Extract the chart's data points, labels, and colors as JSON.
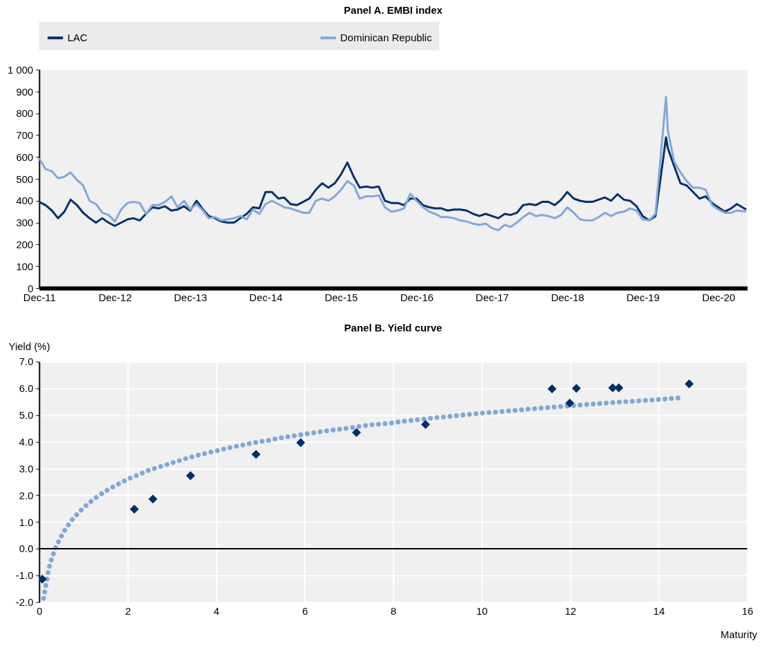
{
  "chart_data": [
    {
      "type": "line",
      "title": "Panel A. EMBI index",
      "legend": "top",
      "x": [
        "2011-12",
        "2012-01",
        "2012-02",
        "2012-03",
        "2012-04",
        "2012-05",
        "2012-06",
        "2012-07",
        "2012-08",
        "2012-09",
        "2012-10",
        "2012-11",
        "2012-12",
        "2013-01",
        "2013-02",
        "2013-03",
        "2013-04",
        "2013-05",
        "2013-06",
        "2013-07",
        "2013-08",
        "2013-09",
        "2013-10",
        "2013-11",
        "2013-12",
        "2014-01",
        "2014-02",
        "2014-03",
        "2014-04",
        "2014-05",
        "2014-06",
        "2014-07",
        "2014-08",
        "2014-09",
        "2014-10",
        "2014-11",
        "2014-12",
        "2015-01",
        "2015-02",
        "2015-03",
        "2015-04",
        "2015-05",
        "2015-06",
        "2015-07",
        "2015-08",
        "2015-09",
        "2015-10",
        "2015-11",
        "2015-12",
        "2016-01",
        "2016-02",
        "2016-03",
        "2016-04",
        "2016-05",
        "2016-06",
        "2016-07",
        "2016-08",
        "2016-09",
        "2016-10",
        "2016-11",
        "2016-12",
        "2017-01",
        "2017-02",
        "2017-03",
        "2017-04",
        "2017-05",
        "2017-06",
        "2017-07",
        "2017-08",
        "2017-09",
        "2017-10",
        "2017-11",
        "2017-12",
        "2018-01",
        "2018-02",
        "2018-03",
        "2018-04",
        "2018-05",
        "2018-06",
        "2018-07",
        "2018-08",
        "2018-09",
        "2018-10",
        "2018-11",
        "2018-12",
        "2019-01",
        "2019-02",
        "2019-03",
        "2019-04",
        "2019-05",
        "2019-06",
        "2019-07",
        "2019-08",
        "2019-09",
        "2019-10",
        "2019-11",
        "2019-12",
        "2020-01",
        "2020-02",
        "2020-03-23",
        "2020-04",
        "2020-05",
        "2020-06",
        "2020-07",
        "2020-08",
        "2020-09",
        "2020-10",
        "2020-11",
        "2020-12",
        "2021-01",
        "2021-02",
        "2021-03",
        "2021-04-15"
      ],
      "series": [
        {
          "name": "LAC",
          "color": "#002f6c",
          "values": [
            395,
            380,
            355,
            320,
            350,
            405,
            380,
            345,
            320,
            300,
            320,
            300,
            285,
            300,
            315,
            320,
            310,
            340,
            370,
            365,
            375,
            355,
            360,
            375,
            355,
            400,
            360,
            330,
            320,
            305,
            300,
            300,
            320,
            340,
            370,
            365,
            440,
            440,
            410,
            415,
            385,
            380,
            395,
            410,
            450,
            480,
            460,
            480,
            520,
            575,
            510,
            460,
            465,
            460,
            465,
            400,
            390,
            390,
            380,
            410,
            410,
            380,
            370,
            365,
            365,
            355,
            360,
            360,
            355,
            340,
            330,
            340,
            330,
            320,
            340,
            335,
            345,
            380,
            385,
            380,
            395,
            395,
            380,
            405,
            440,
            410,
            400,
            395,
            395,
            405,
            415,
            400,
            430,
            405,
            400,
            375,
            330,
            310,
            330,
            690,
            640,
            560,
            480,
            470,
            440,
            410,
            420,
            390,
            370,
            350,
            365,
            385,
            360
          ]
        },
        {
          "name": "Dominican Republic",
          "color": "#7fa8d9",
          "values": [
            595,
            545,
            535,
            503,
            510,
            530,
            495,
            470,
            400,
            385,
            345,
            335,
            305,
            360,
            390,
            395,
            390,
            340,
            380,
            380,
            395,
            420,
            370,
            400,
            360,
            385,
            355,
            320,
            325,
            310,
            315,
            320,
            330,
            315,
            360,
            340,
            385,
            400,
            385,
            370,
            365,
            355,
            345,
            345,
            400,
            410,
            400,
            420,
            450,
            490,
            470,
            410,
            420,
            420,
            425,
            370,
            350,
            355,
            365,
            432,
            400,
            370,
            350,
            340,
            325,
            325,
            320,
            310,
            305,
            295,
            290,
            295,
            275,
            265,
            290,
            280,
            300,
            325,
            345,
            330,
            335,
            330,
            320,
            335,
            370,
            345,
            315,
            310,
            310,
            325,
            345,
            330,
            345,
            350,
            365,
            355,
            315,
            310,
            340,
            875,
            720,
            580,
            530,
            490,
            460,
            460,
            450,
            380,
            360,
            345,
            345,
            355,
            350
          ]
        }
      ],
      "xlim": [
        "2011-12",
        "2021-04-20"
      ],
      "ylim": [
        0,
        1000
      ],
      "xticks": [
        {
          "value": "2011-12",
          "label": "Dec-11"
        },
        {
          "value": "2012-12",
          "label": "Dec-12"
        },
        {
          "value": "2013-12",
          "label": "Dec-13"
        },
        {
          "value": "2014-12",
          "label": "Dec-14"
        },
        {
          "value": "2015-12",
          "label": "Dec-15"
        },
        {
          "value": "2016-12",
          "label": "Dec-16"
        },
        {
          "value": "2017-12",
          "label": "Dec-17"
        },
        {
          "value": "2018-12",
          "label": "Dec-18"
        },
        {
          "value": "2019-12",
          "label": "Dec-19"
        },
        {
          "value": "2020-12",
          "label": "Dec-20"
        }
      ],
      "yticks": [
        0,
        100,
        200,
        300,
        400,
        500,
        600,
        700,
        800,
        900,
        {
          "value": 1000,
          "label": "1 000"
        }
      ]
    },
    {
      "type": "scatter",
      "title": "Panel B. Yield curve",
      "xlabel": "Maturity",
      "ylabel": "Yield (%)",
      "grid": true,
      "series": [
        {
          "type": "line",
          "line_style": "dotted",
          "color": "#7fa8d9",
          "x": [
            0.1,
            0.14,
            0.18,
            0.22,
            0.29,
            0.37,
            0.47,
            0.59,
            0.72,
            0.88,
            1.05,
            1.23,
            1.42,
            1.62,
            1.82,
            2.04,
            2.26,
            2.47,
            2.7,
            2.92,
            3.15,
            3.37,
            3.59,
            3.82,
            4.05,
            4.28,
            4.5,
            4.74,
            4.97,
            5.2,
            5.43,
            5.66,
            5.9,
            6.13,
            6.36,
            6.59,
            6.83,
            7.06,
            7.29,
            7.52,
            7.76,
            7.99,
            8.23,
            8.46,
            8.69,
            8.93,
            9.15,
            9.39,
            9.62,
            9.86,
            10.09,
            10.32,
            10.55,
            10.79,
            11.02,
            11.25,
            11.49,
            11.72,
            11.95,
            12.18,
            12.42,
            12.65,
            12.89,
            13.12,
            13.35,
            13.59,
            13.82,
            14.05,
            14.28,
            14.52
          ],
          "values": [
            -1.86,
            -1.48,
            -1.1,
            -0.72,
            -0.34,
            0.03,
            0.38,
            0.72,
            1.04,
            1.33,
            1.6,
            1.85,
            2.07,
            2.27,
            2.45,
            2.63,
            2.78,
            2.93,
            3.05,
            3.17,
            3.29,
            3.4,
            3.5,
            3.59,
            3.68,
            3.77,
            3.85,
            3.93,
            4.0,
            4.06,
            4.14,
            4.2,
            4.26,
            4.32,
            4.38,
            4.43,
            4.48,
            4.53,
            4.59,
            4.64,
            4.67,
            4.71,
            4.77,
            4.81,
            4.85,
            4.9,
            4.93,
            4.97,
            5.01,
            5.05,
            5.09,
            5.11,
            5.15,
            5.18,
            5.22,
            5.25,
            5.28,
            5.31,
            5.34,
            5.37,
            5.4,
            5.43,
            5.46,
            5.49,
            5.51,
            5.54,
            5.56,
            5.59,
            5.62,
            5.65
          ]
        },
        {
          "type": "scatter",
          "marker": "diamond",
          "color": "#002f6c",
          "x": [
            0.07,
            2.15,
            2.57,
            3.42,
            4.9,
            5.91,
            7.17,
            8.73,
            11.59,
            11.99,
            12.14,
            12.96,
            13.1,
            14.69
          ],
          "values": [
            -1.14,
            1.48,
            1.86,
            2.73,
            3.53,
            3.97,
            4.35,
            4.65,
            5.98,
            5.45,
            6.0,
            6.02,
            6.02,
            6.17
          ]
        }
      ],
      "xlim": [
        0,
        16
      ],
      "ylim": [
        -2,
        7
      ],
      "xticks": [
        0,
        2,
        4,
        6,
        8,
        10,
        12,
        14,
        16
      ],
      "yticks": [
        {
          "value": -2,
          "label": "-2.0"
        },
        {
          "value": -1,
          "label": "-1.0"
        },
        {
          "value": 0,
          "label": "0.0"
        },
        {
          "value": 1,
          "label": "1.0"
        },
        {
          "value": 2,
          "label": "2.0"
        },
        {
          "value": 3,
          "label": "3.0"
        },
        {
          "value": 4,
          "label": "4.0"
        },
        {
          "value": 5,
          "label": "5.0"
        },
        {
          "value": 6,
          "label": "6.0"
        },
        {
          "value": 7,
          "label": "7.0"
        }
      ],
      "ref_lines": [
        {
          "axis": "y",
          "value": 0,
          "color": "#000000"
        }
      ]
    }
  ]
}
